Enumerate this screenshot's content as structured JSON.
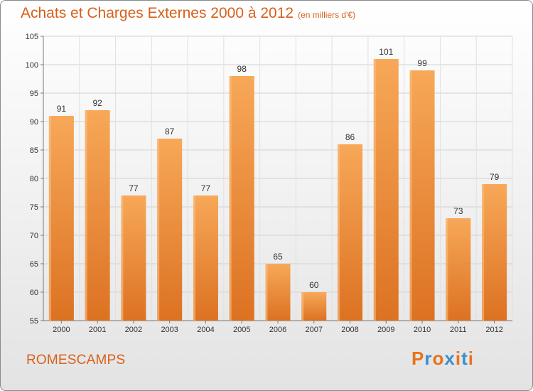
{
  "header": {
    "title": "Achats et Charges Externes 2000 à 2012",
    "subtitle": "(en milliers d'€)"
  },
  "footer": {
    "commune": "ROMESCAMPS",
    "logo": "Proxiti"
  },
  "colors": {
    "title": "#d8601a",
    "bar_light": "#f7a858",
    "bar_dark": "#e07828",
    "logo_letters": [
      "#e8731c",
      "#3a8fd0",
      "#e8731c",
      "#3a8fd0",
      "#e8731c",
      "#3a8fd0",
      "#e8731c"
    ]
  },
  "chart_data": {
    "type": "bar",
    "title": "Achats et Charges Externes 2000 à 2012",
    "subtitle": "(en milliers d'€)",
    "categories": [
      "2000",
      "2001",
      "2002",
      "2003",
      "2004",
      "2005",
      "2006",
      "2007",
      "2008",
      "2009",
      "2010",
      "2011",
      "2012"
    ],
    "values": [
      91,
      92,
      77,
      87,
      77,
      98,
      65,
      60,
      86,
      101,
      99,
      73,
      79
    ],
    "ylim": [
      55,
      105
    ],
    "yticks": [
      55,
      60,
      65,
      70,
      75,
      80,
      85,
      90,
      95,
      100,
      105
    ],
    "grid": true,
    "data_labels": true
  }
}
